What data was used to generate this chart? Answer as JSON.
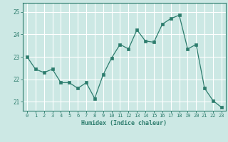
{
  "x": [
    0,
    1,
    2,
    3,
    4,
    5,
    6,
    7,
    8,
    9,
    10,
    11,
    12,
    13,
    14,
    15,
    16,
    17,
    18,
    19,
    20,
    21,
    22,
    23
  ],
  "y": [
    23.0,
    22.45,
    22.3,
    22.45,
    21.85,
    21.85,
    21.6,
    21.85,
    21.15,
    22.2,
    22.95,
    23.55,
    23.35,
    24.2,
    23.7,
    23.65,
    24.45,
    24.7,
    24.85,
    23.35,
    23.55,
    21.6,
    21.05,
    20.75
  ],
  "xlabel": "Humidex (Indice chaleur)",
  "ylim": [
    20.6,
    25.4
  ],
  "xlim": [
    -0.5,
    23.5
  ],
  "yticks": [
    21,
    22,
    23,
    24,
    25
  ],
  "xticks": [
    0,
    1,
    2,
    3,
    4,
    5,
    6,
    7,
    8,
    9,
    10,
    11,
    12,
    13,
    14,
    15,
    16,
    17,
    18,
    19,
    20,
    21,
    22,
    23
  ],
  "line_color": "#2e7d6e",
  "marker_color": "#2e7d6e",
  "bg_color": "#cce8e4",
  "grid_color": "#ffffff",
  "axis_color": "#2e7d6e",
  "tick_label_color": "#2e7d6e",
  "xlabel_color": "#2e7d6e"
}
